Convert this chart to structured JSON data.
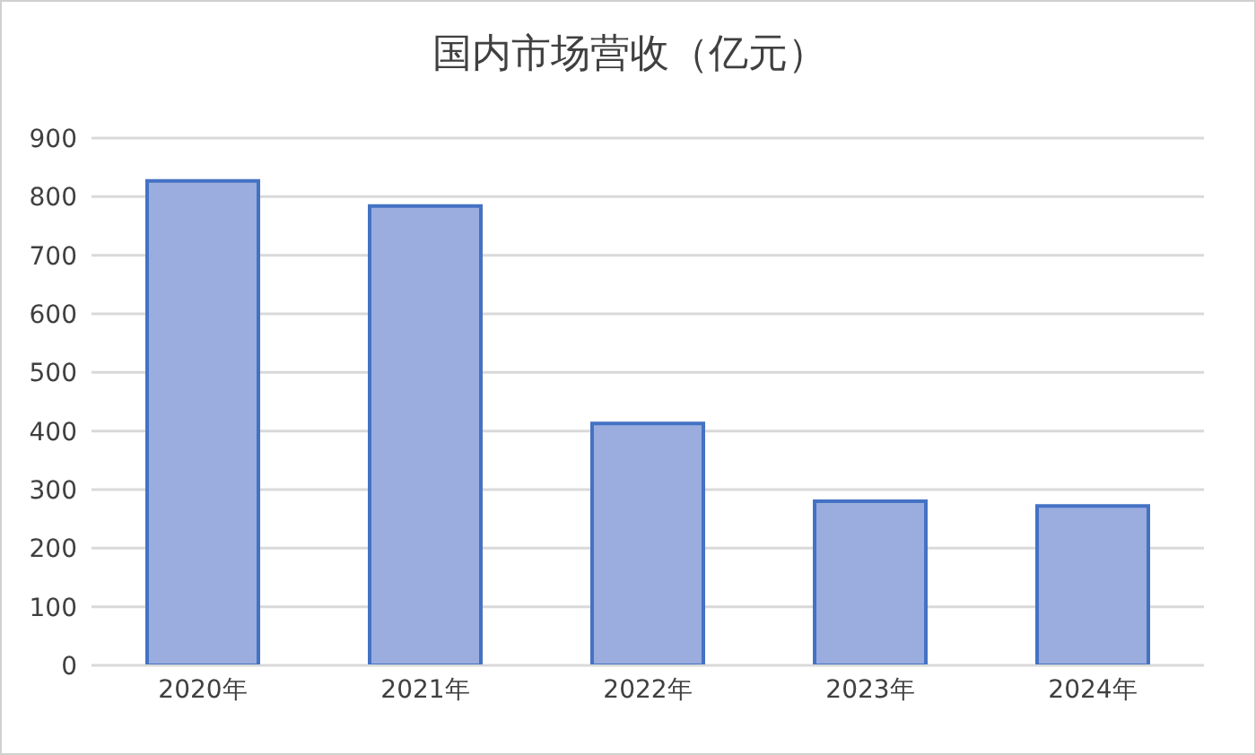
{
  "chart_data": {
    "type": "bar",
    "title": "国内市场营收（亿元）",
    "categories": [
      "2020年",
      "2021年",
      "2022年",
      "2023年",
      "2024年"
    ],
    "values": [
      827,
      784,
      413,
      280,
      272
    ],
    "color": "#9aadde",
    "ylim": [
      0,
      900
    ],
    "yticks": [
      0,
      100,
      200,
      300,
      400,
      500,
      600,
      700,
      800,
      900
    ],
    "grid": "y",
    "legend": false
  }
}
